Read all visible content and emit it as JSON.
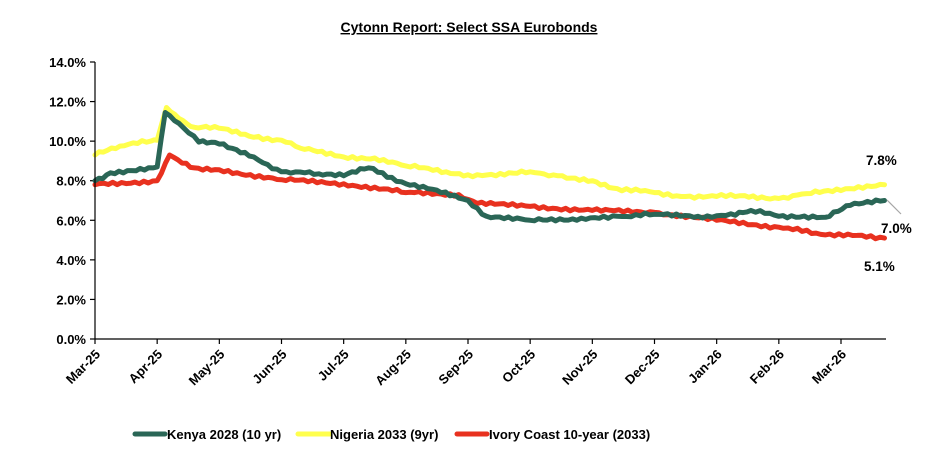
{
  "chart_data": {
    "type": "line",
    "title": "Cytonn Report: Select SSA Eurobonds",
    "xlabel": "",
    "ylabel": "",
    "ylim": [
      0,
      14
    ],
    "yticks": [
      "0.0%",
      "2.0%",
      "4.0%",
      "6.0%",
      "8.0%",
      "10.0%",
      "12.0%",
      "14.0%"
    ],
    "ytick_values": [
      0,
      2,
      4,
      6,
      8,
      10,
      12,
      14
    ],
    "xticks": [
      "Mar-25",
      "Apr-25",
      "May-25",
      "Jun-25",
      "Jul-25",
      "Aug-25",
      "Sep-25",
      "Oct-25",
      "Nov-25",
      "Dec-25",
      "Jan-26",
      "Feb-26",
      "Mar-26"
    ],
    "x_unit": "months since Mar-25",
    "xlim": [
      0,
      12.7
    ],
    "grid": false,
    "legend_position": "bottom",
    "series": [
      {
        "name": "Kenya 2028 (10 yr)",
        "color": "#2a6656",
        "x": [
          0,
          0.25,
          1.0,
          1.13,
          1.35,
          1.67,
          2.0,
          2.48,
          3.0,
          3.6,
          4.0,
          4.4,
          5.0,
          5.35,
          6.0,
          6.3,
          7.0,
          7.75,
          8.4,
          9.0,
          9.7,
          10.3,
          10.55,
          11.0,
          11.75,
          12.15,
          12.7
        ],
        "values": [
          8.0,
          8.4,
          8.7,
          11.45,
          10.9,
          9.95,
          9.85,
          9.25,
          8.45,
          8.35,
          8.25,
          8.65,
          7.85,
          7.6,
          7.0,
          6.2,
          6.0,
          6.0,
          6.2,
          6.3,
          6.2,
          6.25,
          6.5,
          6.2,
          6.15,
          6.75,
          7.0
        ]
      },
      {
        "name": "Nigeria 2033 (9yr)",
        "color": "#ffff4d",
        "x": [
          0,
          0.4,
          0.9,
          1.0,
          1.15,
          1.35,
          1.6,
          1.85,
          2.0,
          2.48,
          3.0,
          3.3,
          4.0,
          4.5,
          5.0,
          5.65,
          6.0,
          6.45,
          7.0,
          7.45,
          8.0,
          8.4,
          9.0,
          9.5,
          10.0,
          10.45,
          11.0,
          11.45,
          12.0,
          12.7
        ],
        "values": [
          9.3,
          9.75,
          10.0,
          10.05,
          11.7,
          11.15,
          10.7,
          10.65,
          10.65,
          10.25,
          10.05,
          9.65,
          9.2,
          9.15,
          8.75,
          8.45,
          8.3,
          8.25,
          8.45,
          8.25,
          8.0,
          7.6,
          7.4,
          7.2,
          7.2,
          7.25,
          7.1,
          7.35,
          7.5,
          7.8
        ]
      },
      {
        "name": "Ivory Coast 10-year (2033)",
        "color": "#e8311f",
        "x": [
          0,
          1.0,
          1.2,
          1.6,
          2.0,
          3.0,
          4.0,
          5.0,
          5.85,
          6.15,
          7.0,
          8.0,
          9.0,
          10.0,
          11.0,
          11.6,
          12.7
        ],
        "values": [
          7.8,
          8.0,
          9.3,
          8.65,
          8.55,
          8.05,
          7.85,
          7.4,
          7.3,
          6.85,
          6.7,
          6.5,
          6.4,
          6.0,
          5.65,
          5.35,
          5.1
        ]
      }
    ],
    "annotations": [
      {
        "text": "7.8%",
        "series": "Nigeria 2033 (9yr)",
        "value": 7.8
      },
      {
        "text": "7.0%",
        "series": "Kenya 2028 (10 yr)",
        "value": 7.0
      },
      {
        "text": "5.1%",
        "series": "Ivory Coast 10-year (2033)",
        "value": 5.1
      }
    ]
  }
}
